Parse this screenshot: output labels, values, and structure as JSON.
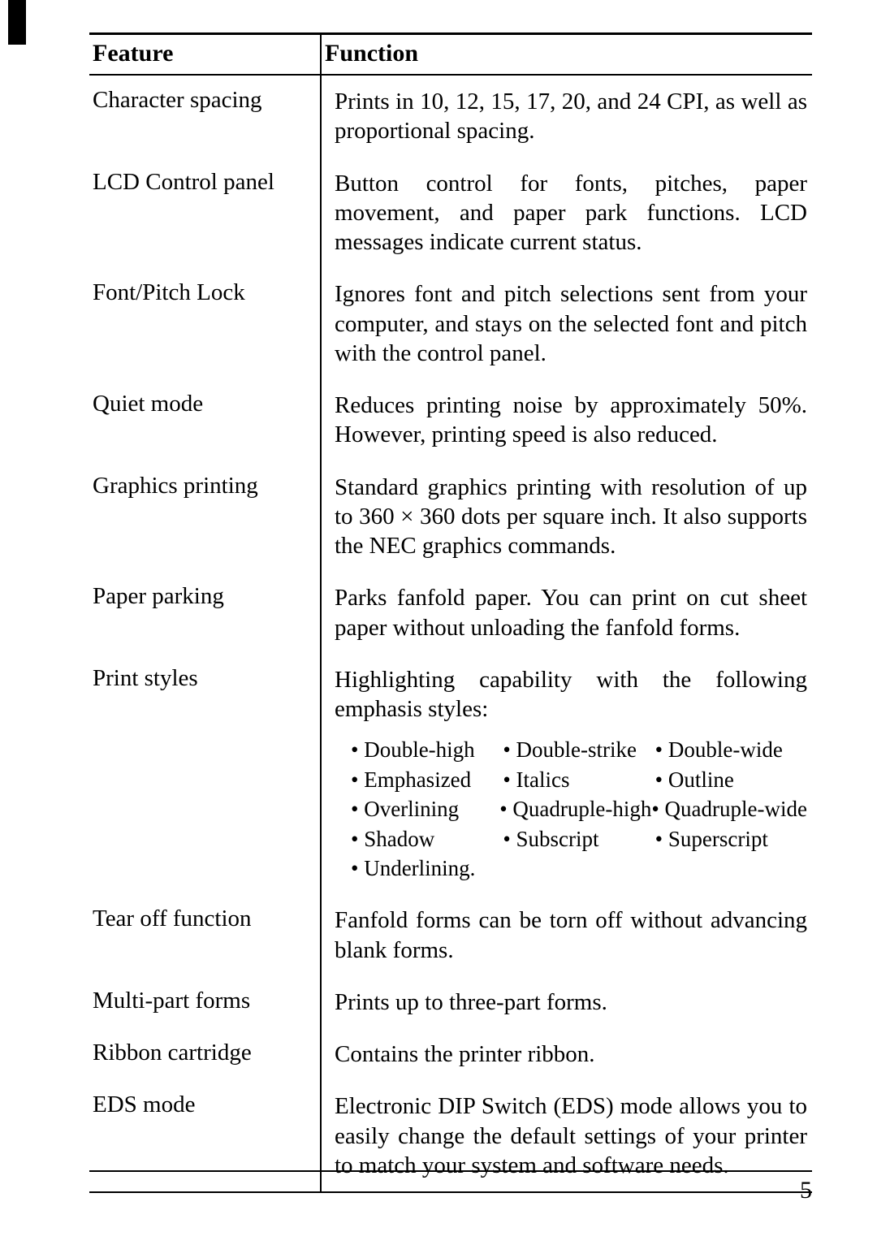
{
  "header": {
    "feature": "Feature",
    "function": "Function"
  },
  "rows": [
    {
      "feature": "Character spacing",
      "function": "Prints in 10, 12, 15, 17, 20, and 24 CPI, as well as proportional spacing."
    },
    {
      "feature": "LCD Control panel",
      "function": "Button control for fonts, pitches, paper movement, and paper park functions. LCD messages indicate current status."
    },
    {
      "feature": "Font/Pitch Lock",
      "function": "Ignores font and pitch selections sent from your computer, and stays on the selected font and pitch with the control panel."
    },
    {
      "feature": "Quiet mode",
      "function": "Reduces printing noise by approximately 50%. However, printing speed is also reduced."
    },
    {
      "feature": "Graphics printing",
      "function": "Standard graphics printing with resolution of up to 360 × 360 dots per square inch.\nIt also supports the NEC graphics commands."
    },
    {
      "feature": "Paper parking",
      "function": "Parks fanfold paper. You can print on cut sheet paper without unloading the fanfold forms."
    },
    {
      "feature": "Print styles",
      "function": "Highlighting capability with the following emphasis styles:"
    },
    {
      "feature": "Tear off function",
      "function": "Fanfold forms can be torn off without advancing blank forms."
    },
    {
      "feature": "Multi-part forms",
      "function": "Prints up to three-part forms."
    },
    {
      "feature": "Ribbon cartridge",
      "function": "Contains the printer ribbon."
    },
    {
      "feature": "EDS mode",
      "function": "Electronic DIP Switch (EDS) mode allows you to easily change the default settings of your printer to match your system and software needs."
    }
  ],
  "print_styles": {
    "rows": [
      [
        "• Double-high",
        "• Double-strike",
        "• Double-wide"
      ],
      [
        "• Emphasized",
        "• Italics",
        "• Outline"
      ],
      [
        "• Overlining",
        "• Quadruple-high",
        "• Quadruple-wide"
      ],
      [
        "• Shadow",
        "• Subscript",
        "• Superscript"
      ],
      [
        "• Underlining.",
        "",
        ""
      ]
    ]
  },
  "page_number": "5"
}
